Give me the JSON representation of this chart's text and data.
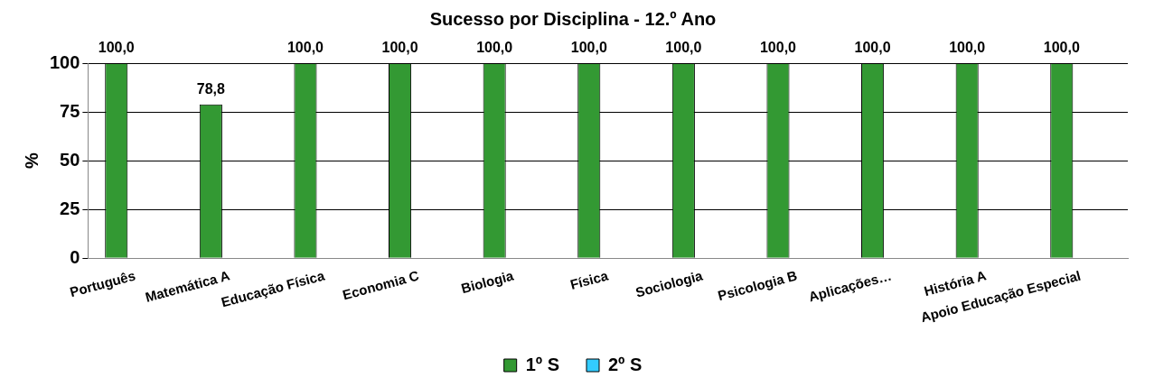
{
  "chart_data": {
    "type": "bar",
    "title": "Sucesso por Disciplina - 12.º Ano",
    "ylabel": "%",
    "categories": [
      "Português",
      "Matemática A",
      "Educação Física",
      "Economia C",
      "Biologia",
      "Física",
      "Sociologia",
      "Psicologia B",
      "Aplicações…",
      "História A",
      "Apoio Educação Especial"
    ],
    "series": [
      {
        "name": "1º S",
        "color": "#339933",
        "values": [
          100,
          78.8,
          100,
          100,
          100,
          100,
          100,
          100,
          100,
          100,
          100
        ],
        "value_labels": [
          "100,0",
          "78,8",
          "100,0",
          "100,0",
          "100,0",
          "100,0",
          "100,0",
          "100,0",
          "100,0",
          "100,0",
          "100,0"
        ]
      },
      {
        "name": "2º S",
        "color": "#33ccff",
        "values": [
          null,
          null,
          null,
          null,
          null,
          null,
          null,
          null,
          null,
          null,
          null
        ]
      }
    ],
    "ylim": [
      0,
      100
    ],
    "yticks": [
      0,
      25,
      50,
      75,
      100
    ],
    "grid": "y",
    "legend": "bottom"
  }
}
